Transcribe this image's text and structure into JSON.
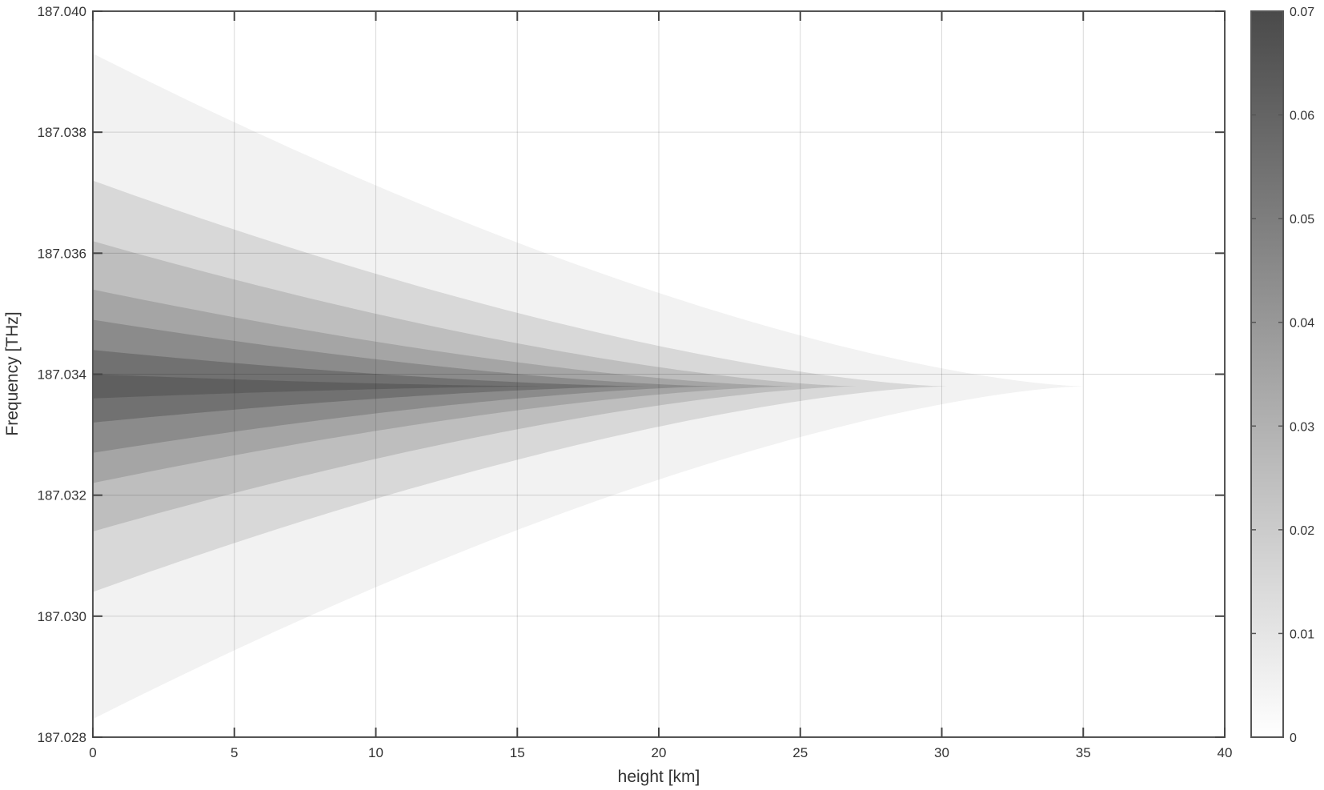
{
  "chart_data": {
    "type": "contour",
    "title": "",
    "xlabel": "height [km]",
    "ylabel": "Frequency [THz]",
    "xlim": [
      0,
      40
    ],
    "ylim": [
      187.028,
      187.04
    ],
    "x_ticks": [
      "0",
      "5",
      "10",
      "15",
      "20",
      "25",
      "30",
      "35",
      "40"
    ],
    "y_ticks": [
      "187.028",
      "187.030",
      "187.032",
      "187.034",
      "187.036",
      "187.038",
      "187.040"
    ],
    "grid": true,
    "center_frequency": 187.0338,
    "peak_value": 0.067,
    "colorbar": {
      "range": [
        0,
        0.07
      ],
      "ticks": [
        "0",
        "0.01",
        "0.02",
        "0.03",
        "0.04",
        "0.05",
        "0.06",
        "0.07"
      ],
      "colormap": "gray (light to dark)"
    },
    "contour_levels": [
      {
        "level": 0.005,
        "extent_km": 35.0,
        "halfwidth_at_0km_THz": 0.0055
      },
      {
        "level": 0.015,
        "extent_km": 30.2,
        "halfwidth_at_0km_THz": 0.0034
      },
      {
        "level": 0.025,
        "extent_km": 27.0,
        "halfwidth_at_0km_THz": 0.0024
      },
      {
        "level": 0.035,
        "extent_km": 24.8,
        "halfwidth_at_0km_THz": 0.0016
      },
      {
        "level": 0.045,
        "extent_km": 22.2,
        "halfwidth_at_0km_THz": 0.0011
      },
      {
        "level": 0.055,
        "extent_km": 19.6,
        "halfwidth_at_0km_THz": 0.0006
      },
      {
        "level": 0.062,
        "extent_km": 16.2,
        "halfwidth_at_0km_THz": 0.0002
      }
    ]
  }
}
